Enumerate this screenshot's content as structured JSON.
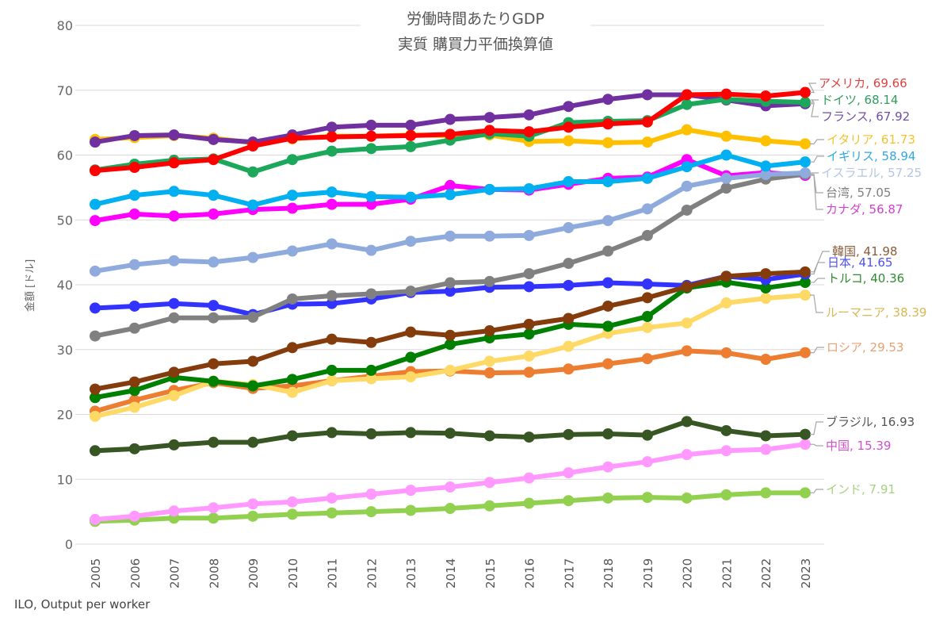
{
  "chart_data": {
    "type": "line",
    "title": "労働時間あたりGDP",
    "subtitle": "実質 購買力平価換算値",
    "xlabel": "",
    "ylabel": "金額 [ドル]",
    "source": "ILO, Output per worker",
    "ylim": [
      0,
      80
    ],
    "yticks": [
      0,
      10,
      20,
      30,
      40,
      50,
      60,
      70,
      80
    ],
    "grid": true,
    "legend": "direct labels at right end of lines",
    "x": [
      "2005",
      "2006",
      "2007",
      "2008",
      "2009",
      "2010",
      "2011",
      "2012",
      "2013",
      "2014",
      "2015",
      "2016",
      "2017",
      "2018",
      "2019",
      "2020",
      "2021",
      "2022",
      "2023"
    ],
    "series": [
      {
        "name": "アメリカ",
        "color": "#FF0000",
        "label_color": "#E04040",
        "values": [
          57.6,
          58.1,
          58.8,
          59.3,
          61.4,
          62.6,
          62.8,
          62.9,
          63.0,
          63.2,
          63.8,
          63.6,
          64.3,
          64.8,
          65.1,
          69.3,
          69.4,
          69.1,
          69.66
        ]
      },
      {
        "name": "ドイツ",
        "color": "#1BA85A",
        "label_color": "#2E9E5E",
        "values": [
          57.7,
          58.6,
          59.2,
          59.4,
          57.4,
          59.3,
          60.6,
          61.0,
          61.3,
          62.3,
          63.3,
          62.9,
          65.0,
          65.2,
          65.3,
          67.8,
          68.6,
          68.3,
          68.14
        ]
      },
      {
        "name": "フランス",
        "color": "#7030A0",
        "label_color": "#7050A0",
        "values": [
          62.0,
          63.0,
          63.1,
          62.4,
          62.0,
          63.1,
          64.3,
          64.6,
          64.6,
          65.5,
          65.8,
          66.2,
          67.5,
          68.6,
          69.3,
          69.3,
          68.5,
          67.6,
          67.92
        ]
      },
      {
        "name": "イタリア",
        "color": "#FFC000",
        "label_color": "#F2C230",
        "values": [
          62.4,
          62.7,
          63.0,
          62.6,
          61.9,
          62.5,
          62.9,
          62.9,
          63.1,
          63.0,
          63.1,
          62.1,
          62.2,
          61.9,
          62.0,
          63.9,
          62.9,
          62.2,
          61.73
        ]
      },
      {
        "name": "イギリス",
        "color": "#00B0F0",
        "label_color": "#30A8E0",
        "values": [
          52.4,
          53.8,
          54.4,
          53.8,
          52.3,
          53.8,
          54.3,
          53.6,
          53.5,
          53.9,
          54.7,
          54.8,
          55.9,
          55.9,
          56.4,
          58.2,
          60.0,
          58.3,
          58.94
        ]
      },
      {
        "name": "イスラエル",
        "color": "#8FAADC",
        "label_color": "#B4C6E0",
        "values": [
          42.1,
          43.1,
          43.7,
          43.5,
          44.2,
          45.2,
          46.3,
          45.3,
          46.7,
          47.5,
          47.5,
          47.6,
          48.8,
          49.9,
          51.7,
          55.2,
          56.4,
          57.0,
          57.25
        ]
      },
      {
        "name": "台湾",
        "color": "#808080",
        "label_color": "#808080",
        "values": [
          32.1,
          33.3,
          34.9,
          34.9,
          35.0,
          37.8,
          38.3,
          38.6,
          39.0,
          40.3,
          40.5,
          41.7,
          43.3,
          45.2,
          47.6,
          51.5,
          54.9,
          56.3,
          57.05
        ]
      },
      {
        "name": "カナダ",
        "color": "#FF00FF",
        "label_color": "#D040D0",
        "values": [
          49.9,
          50.9,
          50.6,
          50.9,
          51.6,
          51.8,
          52.4,
          52.4,
          53.2,
          55.3,
          54.7,
          54.6,
          55.5,
          56.4,
          56.6,
          59.3,
          56.8,
          57.3,
          56.87
        ]
      },
      {
        "name": "韓国",
        "color": "#843C0C",
        "label_color": "#8B5A3A",
        "values": [
          23.9,
          25.0,
          26.5,
          27.8,
          28.2,
          30.3,
          31.6,
          31.1,
          32.7,
          32.2,
          32.9,
          33.9,
          34.8,
          36.7,
          38.0,
          39.7,
          41.3,
          41.7,
          41.98
        ]
      },
      {
        "name": "日本",
        "color": "#3333FF",
        "label_color": "#5050F0",
        "values": [
          36.4,
          36.7,
          37.1,
          36.8,
          35.4,
          37.0,
          37.1,
          37.8,
          38.8,
          39.0,
          39.6,
          39.7,
          39.9,
          40.3,
          40.1,
          39.9,
          41.3,
          40.8,
          41.65
        ]
      },
      {
        "name": "トルコ",
        "color": "#008000",
        "label_color": "#2E8B2E",
        "values": [
          22.6,
          23.7,
          25.7,
          25.1,
          24.4,
          25.4,
          26.8,
          26.8,
          28.8,
          30.8,
          31.8,
          32.4,
          33.9,
          33.6,
          35.1,
          39.5,
          40.4,
          39.5,
          40.36
        ]
      },
      {
        "name": "ルーマニア",
        "color": "#FFD966",
        "label_color": "#D8B850",
        "values": [
          19.7,
          21.1,
          22.9,
          25.1,
          24.6,
          23.4,
          25.2,
          25.5,
          25.8,
          26.8,
          28.2,
          29.0,
          30.5,
          32.5,
          33.4,
          34.1,
          37.2,
          37.9,
          38.39
        ]
      },
      {
        "name": "ロシア",
        "color": "#ED7D31",
        "label_color": "#E8A070",
        "values": [
          20.5,
          22.2,
          23.7,
          24.9,
          24.0,
          24.4,
          25.2,
          25.9,
          26.6,
          26.7,
          26.4,
          26.5,
          27.0,
          27.8,
          28.6,
          29.8,
          29.5,
          28.5,
          29.53
        ]
      },
      {
        "name": "ブラジル",
        "color": "#375623",
        "label_color": "#555555",
        "values": [
          14.4,
          14.7,
          15.3,
          15.7,
          15.7,
          16.7,
          17.2,
          17.0,
          17.2,
          17.1,
          16.7,
          16.5,
          16.9,
          17.0,
          16.8,
          18.9,
          17.5,
          16.7,
          16.93
        ]
      },
      {
        "name": "中国",
        "color": "#FF99FF",
        "label_color": "#D050D0",
        "values": [
          3.8,
          4.3,
          5.1,
          5.6,
          6.2,
          6.5,
          7.1,
          7.7,
          8.3,
          8.8,
          9.5,
          10.2,
          11.0,
          11.9,
          12.7,
          13.8,
          14.4,
          14.6,
          15.39
        ]
      },
      {
        "name": "インド",
        "color": "#92D050",
        "label_color": "#A8D080",
        "values": [
          3.5,
          3.7,
          4.0,
          4.0,
          4.3,
          4.6,
          4.8,
          5.0,
          5.2,
          5.5,
          5.9,
          6.3,
          6.7,
          7.1,
          7.2,
          7.1,
          7.6,
          7.9,
          7.91
        ]
      }
    ]
  }
}
